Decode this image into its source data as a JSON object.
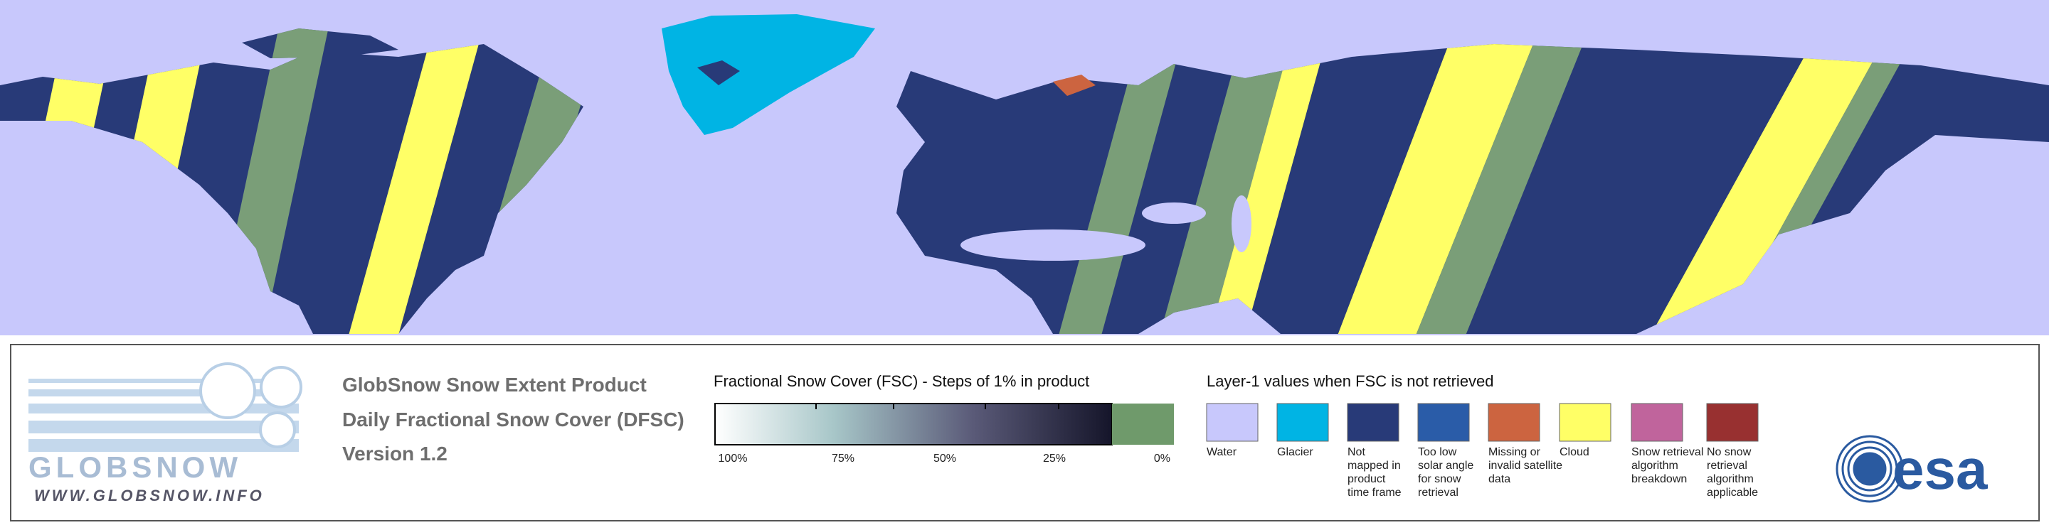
{
  "header": {
    "lines": [
      "GlobSnow Snow Extent Product",
      "Daily Fractional Snow Cover (DFSC)",
      "Version 1.2"
    ]
  },
  "logo": {
    "name": "GLOBSNOW",
    "url": "WWW.GLOBSNOW.INFO",
    "agency": "esa"
  },
  "fsc_legend": {
    "title": "Fractional Snow Cover (FSC) - Steps of 1% in product",
    "tick_labels": [
      "100%",
      "75%",
      "50%",
      "25%",
      "0%"
    ]
  },
  "layer1_legend": {
    "title": "Layer-1 values when FSC is not retrieved",
    "items": [
      {
        "label": [
          "Water"
        ],
        "color": "#c8c8fc"
      },
      {
        "label": [
          "Glacier"
        ],
        "color": "#00b4e4"
      },
      {
        "label": [
          "Not",
          "mapped in",
          "product",
          "time frame"
        ],
        "color": "#283a78"
      },
      {
        "label": [
          "Too low",
          "solar angle",
          "for snow",
          "retrieval"
        ],
        "color": "#2a5ca8"
      },
      {
        "label": [
          "Missing or",
          "invalid satellite",
          "data"
        ],
        "color": "#cc6440"
      },
      {
        "label": [
          "Cloud"
        ],
        "color": "#ffff66"
      },
      {
        "label": [
          "Snow retrieval",
          "algorithm",
          "breakdown"
        ],
        "color": "#c0649c"
      },
      {
        "label": [
          "No snow",
          "retrieval",
          "algorithm",
          "applicable"
        ],
        "color": "#983030"
      }
    ]
  }
}
